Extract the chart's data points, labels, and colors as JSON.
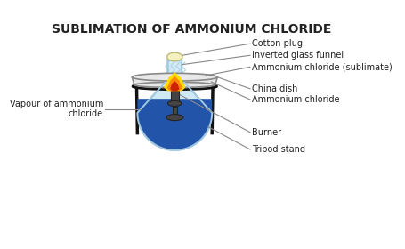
{
  "title": "SUBLIMATION OF AMMONIUM CHLORIDE",
  "title_fontsize": 10,
  "title_fontweight": "bold",
  "background_color": "#ffffff",
  "labels": {
    "cotton_plug": "Cotton plug",
    "inverted_glass_funnel": "Inverted glass funnel",
    "ammonium_chloride_sublimate": "Ammonium chloride (sublimate)",
    "china_dish": "China dish",
    "ammonium_chloride": "Ammonium chloride",
    "vapour": "Vapour of ammonium\nchloride",
    "burner": "Burner",
    "tripod_stand": "Tripod stand"
  },
  "flask_outline": "#a0c8e0",
  "flask_fill_light": "#d0eaf5",
  "flask_fill_blue": "#2255aa",
  "china_dish_fill": "#e8e8e8",
  "china_dish_outline": "#888888",
  "cotton_plug_color": "#f5f0c0",
  "flame_yellow": "#ffdd00",
  "flame_orange": "#ff8800",
  "flame_red": "#cc2200",
  "tripod_color": "#111111",
  "burner_color": "#444444",
  "line_color": "#888888",
  "label_color": "#222222",
  "vapour_color": "#ccddee"
}
